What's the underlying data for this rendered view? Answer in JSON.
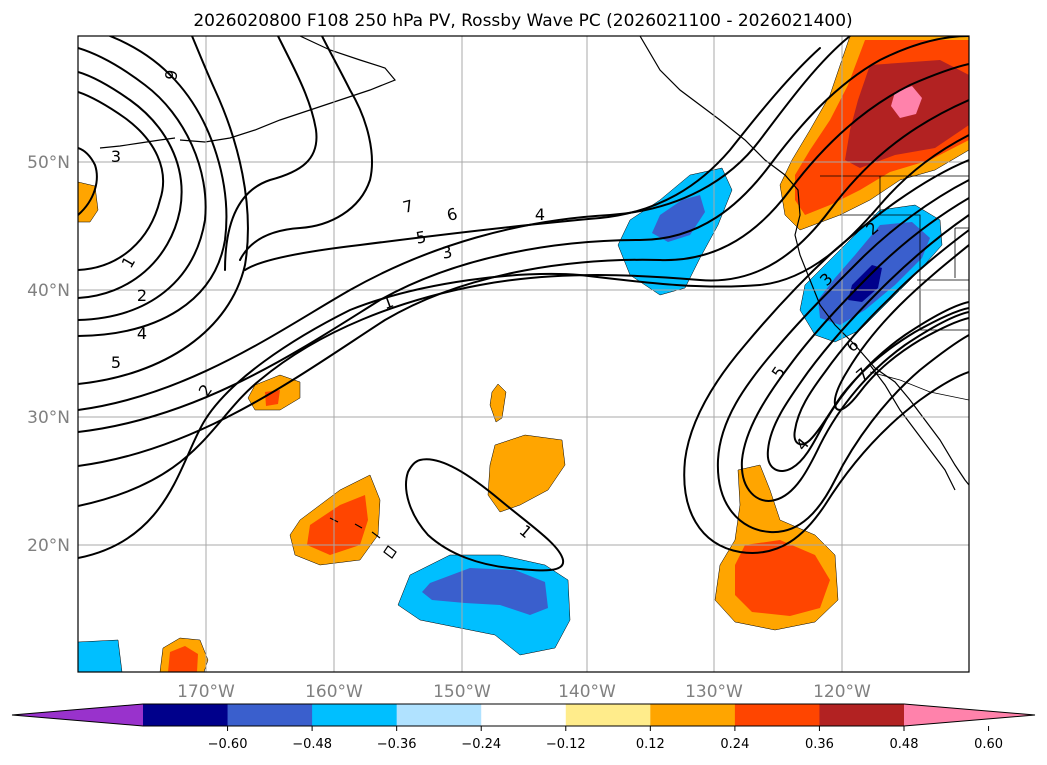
{
  "title": "2026020800 F108 250 hPa PV, Rossby Wave PC (2026021100 - 2026021400)",
  "lon_labels": [
    "170°W",
    "160°W",
    "150°W",
    "140°W",
    "130°W",
    "120°W"
  ],
  "lat_labels": [
    "50°N",
    "40°N",
    "30°N",
    "20°N"
  ],
  "colorbar": {
    "ticks": [
      "−0.60",
      "−0.48",
      "−0.36",
      "−0.24",
      "−0.12",
      "0.12",
      "0.24",
      "0.36",
      "0.48",
      "0.60"
    ],
    "colors": [
      "#9932cc",
      "#00008b",
      "#3a5fcd",
      "#00bfff",
      "#b0e2ff",
      "#ffffff",
      "#ffec8b",
      "#ffa500",
      "#ff4500",
      "#b22222",
      "#ff82ab"
    ]
  },
  "contour_labels": [
    "9",
    "3",
    "1",
    "2",
    "4",
    "5",
    "2",
    "7",
    "6",
    "5",
    "3",
    "4",
    "1",
    "1",
    "2",
    "3",
    "5",
    "6",
    "7",
    "4"
  ]
}
